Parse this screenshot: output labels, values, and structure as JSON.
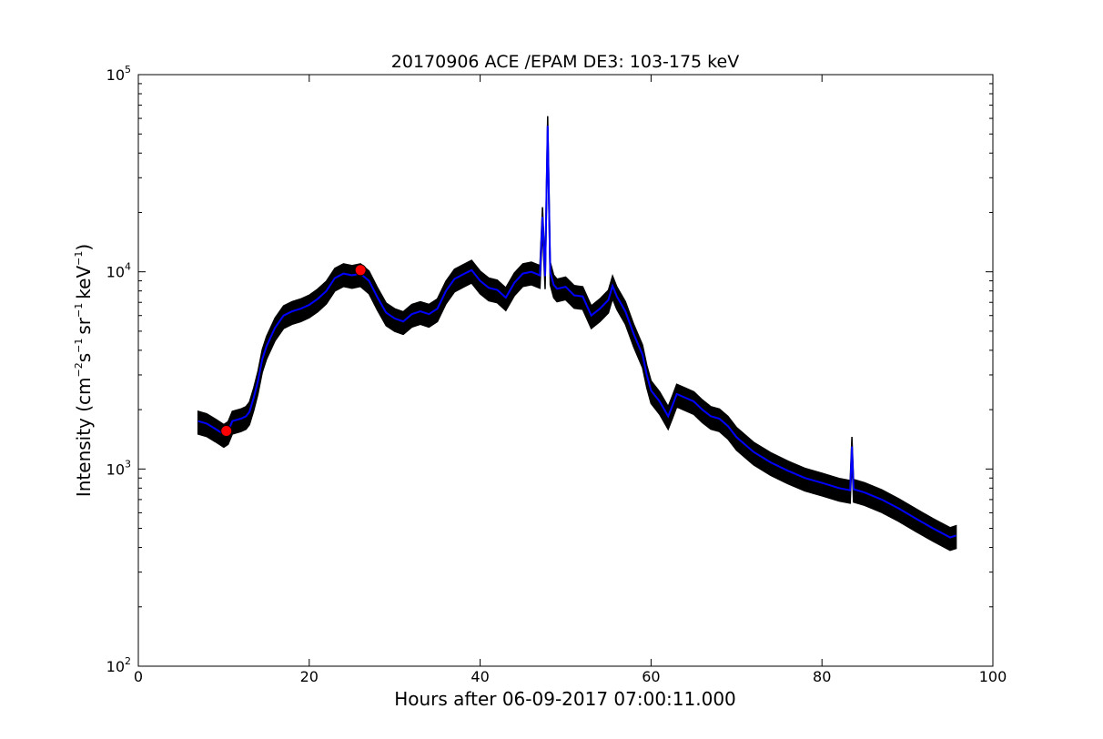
{
  "chart_data": {
    "type": "line",
    "title": "20170906 ACE /EPAM DE3: 103-175 keV",
    "xlabel": "Hours after 06-09-2017 07:00:11.000",
    "ylabel": {
      "prefix": "Intensity (cm",
      "exp1": "−2",
      "mid1": "s",
      "exp2": "−1",
      "mid2": "sr",
      "exp3": "−1",
      "mid3": "keV",
      "exp4": "−1",
      "suffix": ")"
    },
    "xlim": [
      0,
      100
    ],
    "ylim": [
      100,
      100000
    ],
    "yscale": "log",
    "xticks": [
      0,
      20,
      40,
      60,
      80,
      100
    ],
    "yticks": [
      {
        "value": 100,
        "base": "10",
        "exp": "2"
      },
      {
        "value": 1000,
        "base": "10",
        "exp": "3"
      },
      {
        "value": 10000,
        "base": "10",
        "exp": "4"
      },
      {
        "value": 100000,
        "base": "10",
        "exp": "5"
      }
    ],
    "grid": false,
    "series": [
      {
        "color": "#0000ff",
        "error_color": "#000000",
        "x": [
          7.0,
          8.0,
          9.0,
          10.0,
          10.5,
          11.0,
          12.0,
          12.6,
          13.0,
          13.5,
          14.0,
          14.5,
          15.0,
          16.0,
          17.0,
          18.0,
          19.0,
          20.0,
          21.0,
          22.0,
          23.0,
          24.0,
          25.0,
          26.0,
          27.0,
          28.0,
          29.0,
          30.0,
          31.0,
          32.0,
          33.0,
          34.0,
          35.0,
          36.0,
          37.0,
          38.0,
          39.0,
          40.0,
          41.0,
          42.0,
          43.0,
          44.0,
          45.0,
          46.0,
          47.0,
          47.3,
          47.6,
          47.9,
          48.2,
          48.6,
          49.0,
          50.0,
          51.0,
          52.0,
          53.0,
          54.0,
          55.0,
          55.5,
          56.0,
          57.0,
          58.0,
          59.0,
          59.5,
          60.0,
          61.0,
          62.0,
          62.5,
          63.0,
          64.0,
          65.0,
          66.0,
          67.0,
          68.0,
          69.0,
          70.0,
          72.0,
          74.0,
          76.0,
          78.0,
          80.0,
          82.0,
          83.3,
          83.5,
          83.7,
          85.0,
          87.0,
          89.0,
          91.0,
          93.0,
          95.0,
          95.7
        ],
        "y": [
          1750,
          1700,
          1600,
          1500,
          1550,
          1750,
          1800,
          1850,
          1950,
          2300,
          2800,
          3600,
          4200,
          5200,
          6000,
          6300,
          6500,
          6800,
          7300,
          8000,
          9300,
          9800,
          9600,
          9800,
          9000,
          7400,
          6200,
          5800,
          5600,
          6100,
          6300,
          6100,
          6500,
          8000,
          9200,
          9700,
          10200,
          9000,
          8300,
          8100,
          7400,
          8800,
          9800,
          10000,
          9600,
          19000,
          9500,
          55000,
          10000,
          8600,
          8200,
          8400,
          7600,
          7500,
          6000,
          6500,
          7200,
          8500,
          7500,
          6300,
          4800,
          3800,
          3000,
          2500,
          2200,
          1850,
          2100,
          2400,
          2300,
          2200,
          2000,
          1850,
          1800,
          1650,
          1450,
          1220,
          1080,
          980,
          900,
          850,
          800,
          780,
          1300,
          790,
          760,
          700,
          630,
          560,
          500,
          450,
          460
        ]
      }
    ],
    "markers": [
      {
        "x": 10.3,
        "y": 1560,
        "color": "#ff0000"
      },
      {
        "x": 26.0,
        "y": 10200,
        "color": "#ff0000"
      }
    ]
  }
}
